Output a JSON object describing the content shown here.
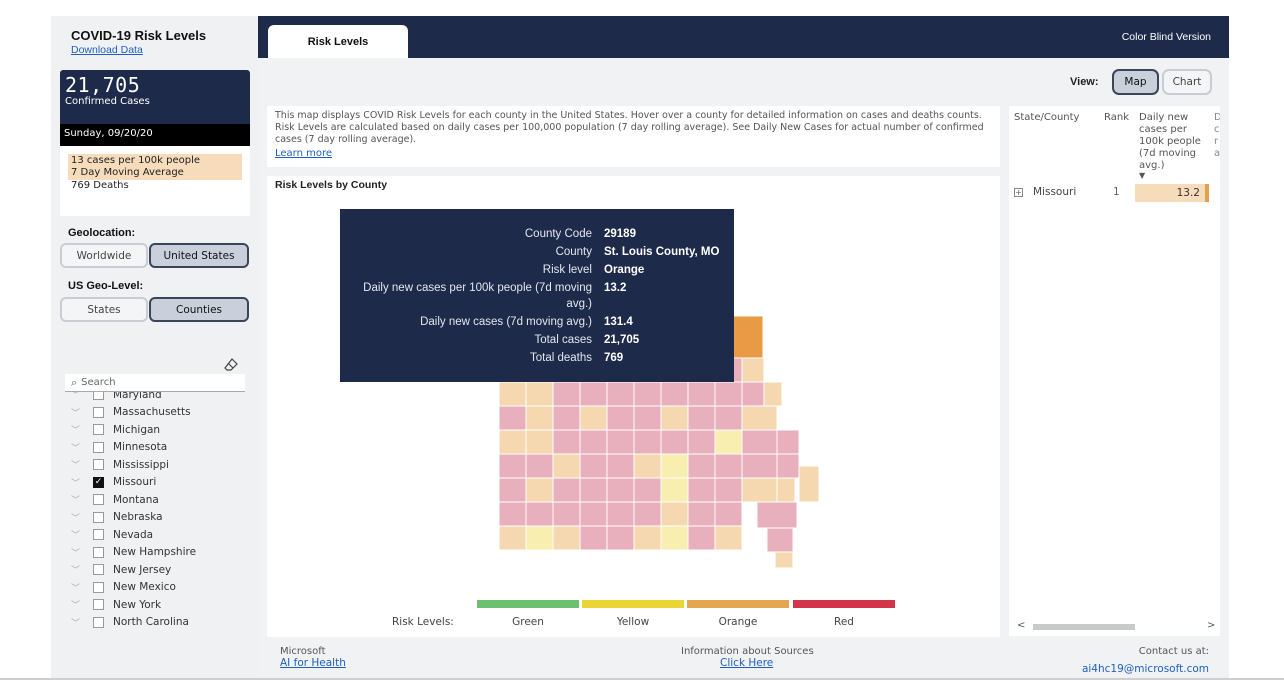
{
  "sidebar": {
    "title": "COVID-19 Risk Levels",
    "download": "Download Data",
    "stat_number": "21,705",
    "stat_label": "Confirmed Cases",
    "stat_date": "Sunday, 09/20/20",
    "cases_per_100k": "13 cases per 100k people",
    "moving_avg": "7 Day Moving Average",
    "deaths": "769 Deaths",
    "geolocation_label": "Geolocation:",
    "geo_worldwide": "Worldwide",
    "geo_us": "United States",
    "geolevel_label": "US Geo-Level:",
    "level_states": "States",
    "level_counties": "Counties",
    "search_placeholder": "Search",
    "states": [
      {
        "name": "Maryland",
        "checked": false
      },
      {
        "name": "Massachusetts",
        "checked": false
      },
      {
        "name": "Michigan",
        "checked": false
      },
      {
        "name": "Minnesota",
        "checked": false
      },
      {
        "name": "Mississippi",
        "checked": false
      },
      {
        "name": "Missouri",
        "checked": true
      },
      {
        "name": "Montana",
        "checked": false
      },
      {
        "name": "Nebraska",
        "checked": false
      },
      {
        "name": "Nevada",
        "checked": false
      },
      {
        "name": "New Hampshire",
        "checked": false
      },
      {
        "name": "New Jersey",
        "checked": false
      },
      {
        "name": "New Mexico",
        "checked": false
      },
      {
        "name": "New York",
        "checked": false
      },
      {
        "name": "North Carolina",
        "checked": false
      }
    ]
  },
  "header": {
    "tab": "Risk Levels",
    "color_blind": "Color Blind Version",
    "view_label": "View:",
    "view_map": "Map",
    "view_chart": "Chart"
  },
  "description": {
    "text": "This map displays COVID Risk Levels for each county in the United States. Hover over a county for detailed information on cases and deaths counts. Risk Levels are calculated based on daily cases per 100,000 population (7 day rolling average). See Daily New Cases for actual number of confirmed cases (7 day rolling average).",
    "learn_more": "Learn more"
  },
  "map": {
    "title": "Risk Levels by County",
    "tooltip": [
      {
        "k": "County Code",
        "v": "29189"
      },
      {
        "k": "County",
        "v": "St. Louis County, MO"
      },
      {
        "k": "Risk level",
        "v": "Orange"
      },
      {
        "k": "Daily new cases per 100k people (7d moving avg.)",
        "v": "13.2"
      },
      {
        "k": "Daily new cases (7d moving avg.)",
        "v": "131.4"
      },
      {
        "k": "Total cases",
        "v": "21,705"
      },
      {
        "k": "Total deaths",
        "v": "769"
      }
    ],
    "legend_label": "Risk Levels:",
    "legend": [
      {
        "name": "Green",
        "color": "#6cc070"
      },
      {
        "name": "Yellow",
        "color": "#ead536"
      },
      {
        "name": "Orange",
        "color": "#e4a651"
      },
      {
        "name": "Red",
        "color": "#d2344a"
      }
    ],
    "colors": {
      "red": "#e8afbd",
      "orange_light": "#f6d8b0",
      "yellow": "#f8eeb0",
      "orange": "#e89a45"
    }
  },
  "table": {
    "col_state": "State/County",
    "col_rank": "Rank",
    "col_daily": "Daily new cases per 100k people (7d moving avg.)",
    "row_state": "Missouri",
    "row_rank": "1",
    "row_value": "13.2"
  },
  "footer": {
    "microsoft": "Microsoft",
    "ai_health": "AI for Health",
    "sources": "Information about Sources",
    "click_here": "Click Here",
    "contact": "Contact us at:",
    "email": "ai4hc19@microsoft.com"
  }
}
